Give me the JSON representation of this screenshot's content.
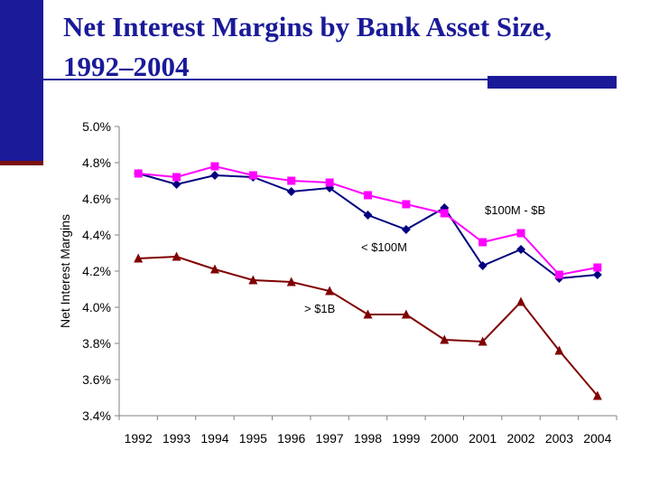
{
  "slide": {
    "title_line1": "Net Interest Margins by Bank Asset Size,",
    "title_line2": "1992–2004"
  },
  "colors": {
    "title": "#1a1a99",
    "accent_bar": "#1a1a99",
    "accent_shadow": "#7a1010"
  },
  "chart_data": {
    "type": "line",
    "title": "",
    "xlabel": "",
    "ylabel": "Net Interest Margins",
    "categories": [
      "1992",
      "1993",
      "1994",
      "1995",
      "1996",
      "1997",
      "1998",
      "1999",
      "2000",
      "2001",
      "2002",
      "2003",
      "2004"
    ],
    "y_ticks": [
      "3.4%",
      "3.6%",
      "3.8%",
      "4.0%",
      "4.2%",
      "4.4%",
      "4.6%",
      "4.8%",
      "5.0%"
    ],
    "ylim": [
      3.4,
      5.0
    ],
    "grid": false,
    "legend": "none",
    "series": [
      {
        "name": "< $100M",
        "color": "#000080",
        "marker": "diamond",
        "values": [
          4.74,
          4.68,
          4.73,
          4.72,
          4.64,
          4.66,
          4.51,
          4.43,
          4.55,
          4.23,
          4.32,
          4.16,
          4.18
        ]
      },
      {
        "name": "$100M - $B",
        "color": "#ff00ff",
        "marker": "square",
        "values": [
          4.74,
          4.72,
          4.78,
          4.73,
          4.7,
          4.69,
          4.62,
          4.57,
          4.52,
          4.36,
          4.41,
          4.18,
          4.22
        ]
      },
      {
        "name": "> $1B",
        "color": "#800000",
        "marker": "triangle",
        "values": [
          4.27,
          4.28,
          4.21,
          4.15,
          4.14,
          4.09,
          3.96,
          3.96,
          3.82,
          3.81,
          4.03,
          3.76,
          3.51
        ]
      }
    ],
    "annotations": [
      {
        "text": "$100M - $B",
        "series": "$100M - $B"
      },
      {
        "text": "< $100M",
        "series": "< $100M"
      },
      {
        "text": "> $1B",
        "series": "> $1B"
      }
    ]
  }
}
